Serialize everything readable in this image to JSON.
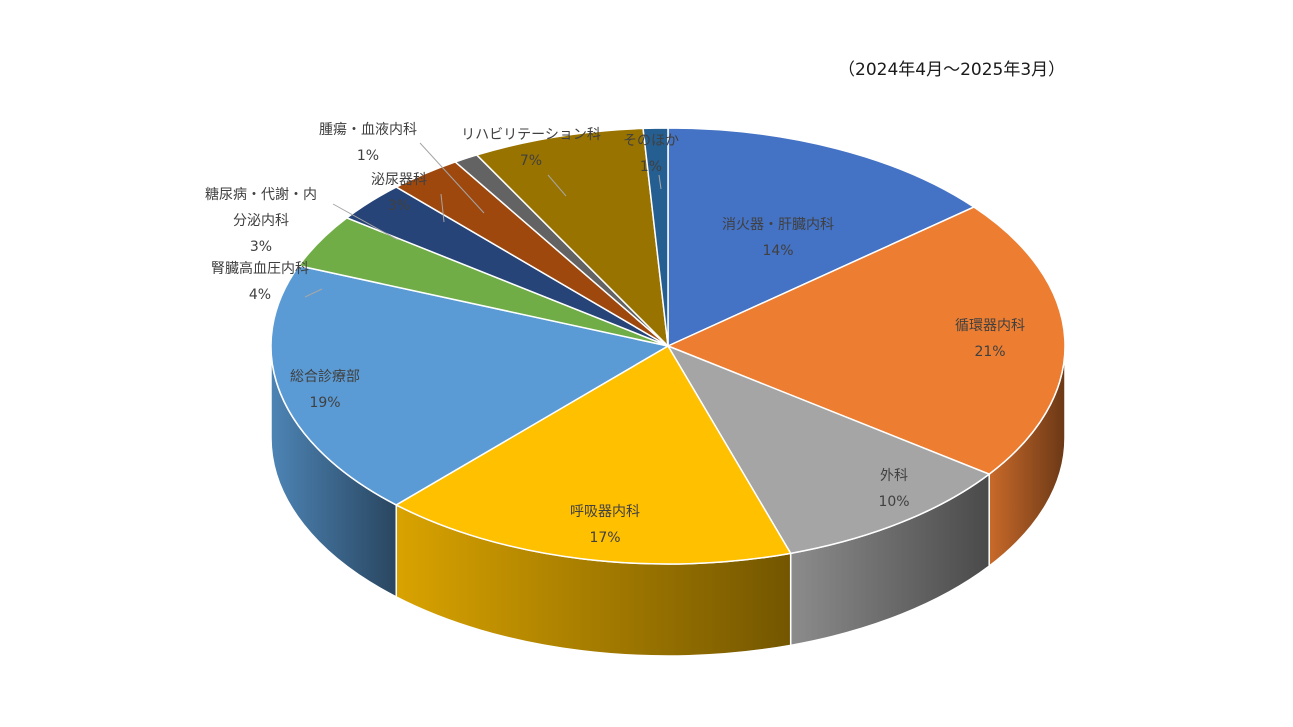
{
  "subtitle": "（2024年4月～2025年3月）",
  "chart_data": {
    "type": "pie",
    "style": "3d-exploded-free",
    "title": "",
    "slices": [
      {
        "label": "消火器・肝臓内科",
        "value": 14,
        "value_label": "14%",
        "color": "#4472C4"
      },
      {
        "label": "循環器内科",
        "value": 21,
        "value_label": "21%",
        "color": "#ED7D31"
      },
      {
        "label": "外科",
        "value": 10,
        "value_label": "10%",
        "color": "#A5A5A5"
      },
      {
        "label": "呼吸器内科",
        "value": 17,
        "value_label": "17%",
        "color": "#FFC000"
      },
      {
        "label": "総合診療部",
        "value": 19,
        "value_label": "19%",
        "color": "#5B9BD5"
      },
      {
        "label": "腎臓高血圧内科",
        "value": 4,
        "value_label": "4%",
        "color": "#70AD47"
      },
      {
        "label": "糖尿病・代謝・内分泌内科",
        "value": 3,
        "value_label": "3%",
        "color": "#264478"
      },
      {
        "label": "泌尿器科",
        "value": 3,
        "value_label": "3%",
        "color": "#9E480E"
      },
      {
        "label": "腫瘍・血液内科",
        "value": 1,
        "value_label": "1%",
        "color": "#636363"
      },
      {
        "label": "リハビリテーション科",
        "value": 7,
        "value_label": "7%",
        "color": "#997300"
      },
      {
        "label": "そのほか",
        "value": 1,
        "value_label": "1%",
        "color": "#255E91"
      }
    ]
  }
}
